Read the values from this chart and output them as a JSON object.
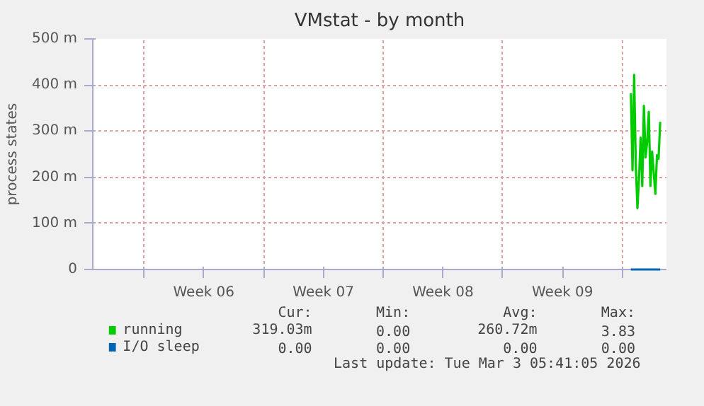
{
  "chart_data": {
    "type": "line",
    "title": "VMstat - by month",
    "ylabel": "process states",
    "x": [
      "2026-03-01T12:00",
      "2026-03-01T14:18",
      "2026-03-01T16:36",
      "2026-03-01T18:54",
      "2026-03-01T21:12",
      "2026-03-01T23:30",
      "2026-03-02T01:42",
      "2026-03-02T04:00",
      "2026-03-02T06:18",
      "2026-03-02T08:36",
      "2026-03-02T10:54",
      "2026-03-02T13:12",
      "2026-03-02T15:30",
      "2026-03-02T17:48",
      "2026-03-02T20:06",
      "2026-03-02T22:24",
      "2026-03-03T00:42",
      "2026-03-03T02:54",
      "2026-03-03T05:12"
    ],
    "series": [
      {
        "name": "running",
        "color": "#00cc00",
        "values": [
          382,
          215,
          422,
          229,
          133,
          200,
          286,
          181,
          355,
          243,
          277,
          342,
          181,
          256,
          210,
          164,
          248,
          240,
          320
        ]
      },
      {
        "name": "I/O sleep",
        "color": "#0066b3",
        "values": [
          0,
          0,
          0,
          0,
          0,
          0,
          0,
          0,
          0,
          0,
          0,
          0,
          0,
          0,
          0,
          0,
          0,
          0,
          0
        ]
      }
    ],
    "xlim": [
      "2026-01-29T00:00",
      "2026-03-03T14:00"
    ],
    "xticks": [
      {
        "value": "2026-02-01T00:00",
        "label": null
      },
      {
        "value": "2026-02-04T12:00",
        "label": "Week 06"
      },
      {
        "value": "2026-02-08T00:00",
        "label": null
      },
      {
        "value": "2026-02-11T12:00",
        "label": "Week 07"
      },
      {
        "value": "2026-02-15T00:00",
        "label": null
      },
      {
        "value": "2026-02-18T12:00",
        "label": "Week 08"
      },
      {
        "value": "2026-02-22T00:00",
        "label": null
      },
      {
        "value": "2026-02-25T12:00",
        "label": "Week 09"
      },
      {
        "value": "2026-03-01T00:00",
        "label": null
      }
    ],
    "ylim": [
      0,
      500
    ],
    "yticks": [
      0,
      {
        "value": 100,
        "label": "100 m"
      },
      {
        "value": 200,
        "label": "200 m"
      },
      {
        "value": 300,
        "label": "300 m"
      },
      {
        "value": 400,
        "label": "400 m"
      },
      {
        "value": 500,
        "label": "500 m"
      }
    ],
    "grid": true,
    "legend": "bottom",
    "line_style": "solid",
    "annotations": [
      "Cur:",
      "Min:",
      "Avg:",
      "Max:",
      "319.03m",
      "0.00",
      "260.72m",
      "3.83",
      "0.00",
      "0.00",
      "0.00",
      "0.00",
      "Last update: Tue Mar  3 05:41:05 2026"
    ]
  }
}
